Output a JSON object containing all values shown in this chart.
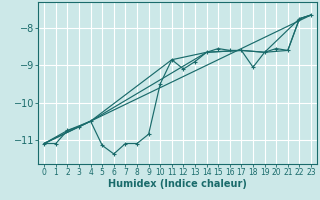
{
  "xlabel": "Humidex (Indice chaleur)",
  "background_color": "#cce8e8",
  "grid_color": "#ffffff",
  "line_color": "#1a6b6b",
  "xlim": [
    -0.5,
    23.5
  ],
  "ylim": [
    -11.65,
    -7.3
  ],
  "xticks": [
    0,
    1,
    2,
    3,
    4,
    5,
    6,
    7,
    8,
    9,
    10,
    11,
    12,
    13,
    14,
    15,
    16,
    17,
    18,
    19,
    20,
    21,
    22,
    23
  ],
  "yticks": [
    -11,
    -10,
    -9,
    -8
  ],
  "line1_x": [
    0,
    1,
    2,
    3,
    4,
    5,
    6,
    7,
    8,
    9,
    10,
    11,
    12,
    13,
    14,
    15,
    16,
    17,
    18,
    19,
    20,
    21,
    22,
    23
  ],
  "line1_y": [
    -11.1,
    -11.1,
    -10.75,
    -10.65,
    -10.5,
    -11.15,
    -11.38,
    -11.1,
    -11.1,
    -10.85,
    -9.5,
    -8.85,
    -9.1,
    -8.9,
    -8.65,
    -8.55,
    -8.6,
    -8.6,
    -9.05,
    -8.65,
    -8.55,
    -8.6,
    -7.75,
    -7.65
  ],
  "line2_x": [
    0,
    2,
    4,
    14,
    17,
    19,
    21,
    22,
    23
  ],
  "line2_y": [
    -11.1,
    -10.75,
    -10.5,
    -8.65,
    -8.6,
    -8.65,
    -8.6,
    -7.75,
    -7.65
  ],
  "line3_x": [
    0,
    23
  ],
  "line3_y": [
    -11.1,
    -7.65
  ],
  "line4_x": [
    0,
    4,
    11,
    14,
    17,
    19,
    22,
    23
  ],
  "line4_y": [
    -11.1,
    -10.5,
    -8.85,
    -8.65,
    -8.6,
    -8.65,
    -7.75,
    -7.65
  ]
}
